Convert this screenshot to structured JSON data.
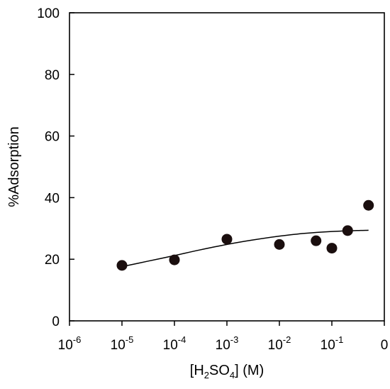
{
  "chart_data": {
    "type": "scatter",
    "x_scale": "log",
    "xlabel": {
      "pre": "[H",
      "sub1": "2",
      "mid": "SO",
      "sub2": "4",
      "post": "] (M)"
    },
    "ylabel": "%Adsorption",
    "xlim": [
      1e-06,
      1
    ],
    "ylim": [
      0,
      100
    ],
    "x_ticks": [
      {
        "value": 1e-06,
        "base": "10",
        "exp": "-6"
      },
      {
        "value": 1e-05,
        "base": "10",
        "exp": "-5"
      },
      {
        "value": 0.0001,
        "base": "10",
        "exp": "-4"
      },
      {
        "value": 0.001,
        "base": "10",
        "exp": "-3"
      },
      {
        "value": 0.01,
        "base": "10",
        "exp": "-2"
      },
      {
        "value": 0.1,
        "base": "10",
        "exp": "-1"
      },
      {
        "value": 1,
        "base": "0",
        "exp": ""
      }
    ],
    "y_ticks": [
      "0",
      "20",
      "40",
      "60",
      "80",
      "100"
    ],
    "points": [
      {
        "x": 1e-05,
        "y": 18
      },
      {
        "x": 0.0001,
        "y": 19.8
      },
      {
        "x": 0.001,
        "y": 26.5
      },
      {
        "x": 0.01,
        "y": 24.8
      },
      {
        "x": 0.05,
        "y": 26
      },
      {
        "x": 0.1,
        "y": 23.6
      },
      {
        "x": 0.2,
        "y": 29.3
      },
      {
        "x": 0.5,
        "y": 37.5
      }
    ],
    "fit_curve": [
      {
        "x": 1e-05,
        "y": 17.6
      },
      {
        "x": 3e-05,
        "y": 19.3
      },
      {
        "x": 0.0001,
        "y": 21.2
      },
      {
        "x": 0.0003,
        "y": 23
      },
      {
        "x": 0.001,
        "y": 24.8
      },
      {
        "x": 0.003,
        "y": 26.2
      },
      {
        "x": 0.01,
        "y": 27.5
      },
      {
        "x": 0.03,
        "y": 28.4
      },
      {
        "x": 0.1,
        "y": 29.0
      },
      {
        "x": 0.3,
        "y": 29.3
      },
      {
        "x": 0.5,
        "y": 29.4
      }
    ],
    "point_color": "#1a0e0e",
    "line_color": "#000000"
  }
}
